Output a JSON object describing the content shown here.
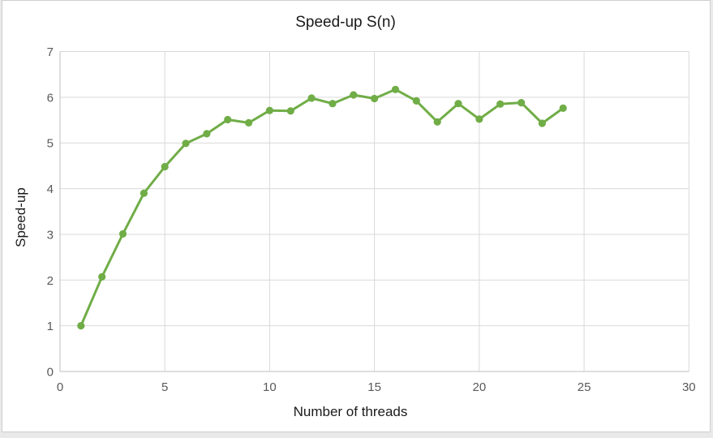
{
  "window": {
    "background_color": "#e9e9e9",
    "panel_background": "#ffffff",
    "panel_border_color": "#cfcfcf"
  },
  "chart_data": {
    "type": "line",
    "title": "Speed-up S(n)",
    "xlabel": "Number of threads",
    "ylabel": "Speed-up",
    "xlim": [
      0,
      30
    ],
    "ylim": [
      0,
      7
    ],
    "xticks": [
      0,
      5,
      10,
      15,
      20,
      25,
      30
    ],
    "yticks": [
      0,
      1,
      2,
      3,
      4,
      5,
      6,
      7
    ],
    "grid": true,
    "legend": false,
    "series": [
      {
        "name": "S(n)",
        "color": "#70AD47",
        "marker": "circle",
        "x": [
          1,
          2,
          3,
          4,
          5,
          6,
          7,
          8,
          9,
          10,
          11,
          12,
          13,
          14,
          15,
          16,
          17,
          18,
          19,
          20,
          21,
          22,
          23,
          24
        ],
        "y": [
          1.0,
          2.07,
          3.01,
          3.9,
          4.48,
          4.99,
          5.2,
          5.51,
          5.44,
          5.71,
          5.7,
          5.98,
          5.86,
          6.05,
          5.97,
          6.17,
          5.92,
          5.46,
          5.86,
          5.52,
          5.85,
          5.88,
          5.43,
          5.76
        ]
      }
    ],
    "colors": {
      "gridline": "#d9d9d9",
      "axis_line": "#bfbfbf",
      "tick_label": "#595959",
      "title_text": "#1a1a1a"
    }
  }
}
